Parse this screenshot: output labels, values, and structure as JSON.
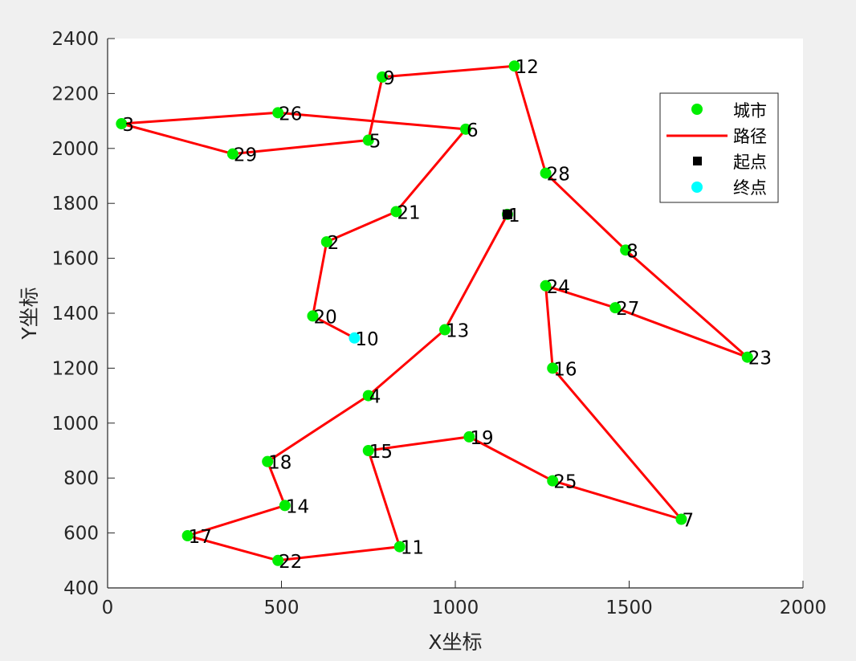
{
  "chart_data": {
    "type": "line",
    "title": "",
    "xlabel": "X坐标",
    "ylabel": "Y坐标",
    "xlim": [
      0,
      2000
    ],
    "ylim": [
      400,
      2400
    ],
    "xticks": [
      0,
      500,
      1000,
      1500,
      2000
    ],
    "yticks": [
      400,
      600,
      800,
      1000,
      1200,
      1400,
      1600,
      1800,
      2000,
      2200,
      2400
    ],
    "grid": false,
    "legend_position": "top-right",
    "legend": [
      {
        "label": "城市",
        "kind": "marker-circle",
        "color": "#00ee00"
      },
      {
        "label": "路径",
        "kind": "line",
        "color": "#ff0000"
      },
      {
        "label": "起点",
        "kind": "marker-square",
        "color": "#000000"
      },
      {
        "label": "终点",
        "kind": "marker-circle",
        "color": "#00ffff"
      }
    ],
    "cities": [
      {
        "id": "1",
        "x": 1150,
        "y": 1760
      },
      {
        "id": "2",
        "x": 630,
        "y": 1660
      },
      {
        "id": "3",
        "x": 40,
        "y": 2090
      },
      {
        "id": "4",
        "x": 750,
        "y": 1100
      },
      {
        "id": "5",
        "x": 750,
        "y": 2030
      },
      {
        "id": "6",
        "x": 1030,
        "y": 2070
      },
      {
        "id": "7",
        "x": 1650,
        "y": 650
      },
      {
        "id": "8",
        "x": 1490,
        "y": 1630
      },
      {
        "id": "9",
        "x": 790,
        "y": 2260
      },
      {
        "id": "10",
        "x": 710,
        "y": 1310
      },
      {
        "id": "11",
        "x": 840,
        "y": 550
      },
      {
        "id": "12",
        "x": 1170,
        "y": 2300
      },
      {
        "id": "13",
        "x": 970,
        "y": 1340
      },
      {
        "id": "14",
        "x": 510,
        "y": 700
      },
      {
        "id": "15",
        "x": 750,
        "y": 900
      },
      {
        "id": "16",
        "x": 1280,
        "y": 1200
      },
      {
        "id": "17",
        "x": 230,
        "y": 590
      },
      {
        "id": "18",
        "x": 460,
        "y": 860
      },
      {
        "id": "19",
        "x": 1040,
        "y": 950
      },
      {
        "id": "20",
        "x": 590,
        "y": 1390
      },
      {
        "id": "21",
        "x": 830,
        "y": 1770
      },
      {
        "id": "22",
        "x": 490,
        "y": 500
      },
      {
        "id": "23",
        "x": 1840,
        "y": 1240
      },
      {
        "id": "24",
        "x": 1260,
        "y": 1500
      },
      {
        "id": "25",
        "x": 1280,
        "y": 790
      },
      {
        "id": "26",
        "x": 490,
        "y": 2130
      },
      {
        "id": "27",
        "x": 1460,
        "y": 1420
      },
      {
        "id": "28",
        "x": 1260,
        "y": 1910
      },
      {
        "id": "29",
        "x": 360,
        "y": 1980
      }
    ],
    "route": [
      "1",
      "13",
      "4",
      "18",
      "14",
      "17",
      "22",
      "11",
      "15",
      "19",
      "25",
      "7",
      "16",
      "24",
      "27",
      "23",
      "8",
      "28",
      "12",
      "9",
      "5",
      "29",
      "3",
      "26",
      "6",
      "21",
      "2",
      "20",
      "10"
    ],
    "start": "1",
    "end": "10"
  },
  "colors": {
    "city": "#00ee00",
    "route": "#ff0000",
    "start": "#000000",
    "end": "#00ffff",
    "axes_bg": "#ffffff",
    "figure_bg": "#f0f0f0",
    "axis": "#262626"
  }
}
